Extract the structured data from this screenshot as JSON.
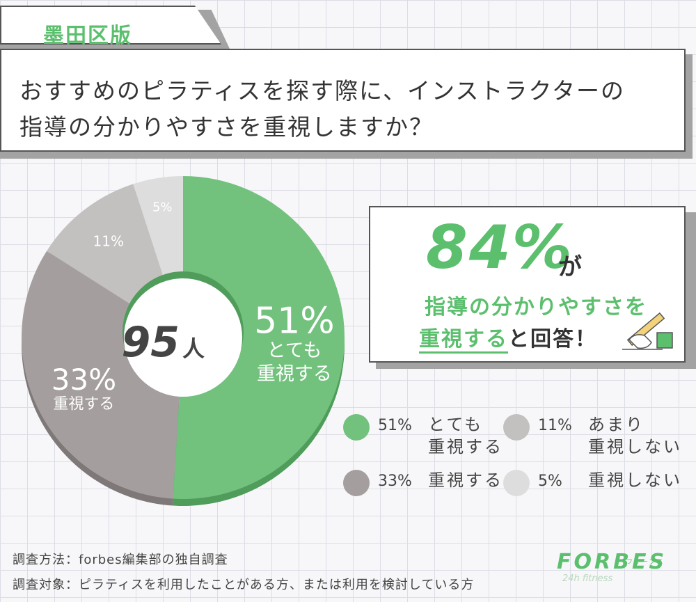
{
  "region_tag": "墨田区版",
  "question": {
    "line1": "おすすめのピラティスを探す際に、インストラクターの",
    "line2": "指導の分かりやすさを重視しますか？"
  },
  "chart_data": {
    "type": "pie",
    "center_value": "95",
    "center_unit": "人",
    "categories": [
      "とても重視する",
      "重視する",
      "あまり重視しない",
      "重視しない"
    ],
    "values": [
      51,
      33,
      11,
      5
    ],
    "slice_labels": [
      {
        "pct": "51%",
        "lines": [
          "とても",
          "重視する"
        ]
      },
      {
        "pct": "33%",
        "lines": [
          "重視する"
        ]
      },
      {
        "pct": "11%",
        "lines": []
      },
      {
        "pct": "5%",
        "lines": []
      }
    ],
    "colors": [
      "#72c27e",
      "#a59e9e",
      "#c3c0c0",
      "#dedddd"
    ]
  },
  "callout": {
    "headline_pct": "84%",
    "headline_suffix": "が",
    "line1": "指導の分かりやすさを",
    "line2_highlight": "重視する",
    "line2_rest": "と回答！"
  },
  "legend": [
    {
      "pct": "51%",
      "label_line1": "とても",
      "label_line2": "重視する",
      "color": "#72c27e"
    },
    {
      "pct": "11%",
      "label_line1": "あまり",
      "label_line2": "重視しない",
      "color": "#c3c0c0"
    },
    {
      "pct": "33%",
      "label_line1": "重視する",
      "label_line2": "",
      "color": "#a59e9e"
    },
    {
      "pct": "5%",
      "label_line1": "重視しない",
      "label_line2": "",
      "color": "#dedddd"
    }
  ],
  "footer": {
    "method": "調査方法：forbes編集部の独自調査",
    "target": "調査対象：ピラティスを利用したことがある方、または利用を検討している方"
  },
  "logo": {
    "main": "FORBES",
    "kana": "フォーブス",
    "sub": "24h fitness"
  }
}
